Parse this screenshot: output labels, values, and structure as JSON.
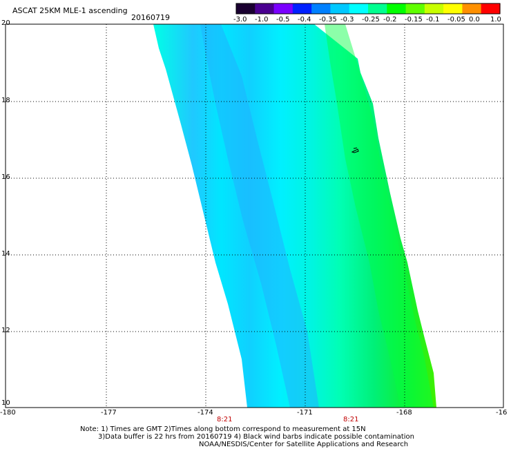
{
  "header": {
    "title": "ASCAT 25KM MLE-1 ascending",
    "date": "20160719"
  },
  "colorbar": {
    "tick_labels": [
      "-3.0",
      "-1.0",
      "-0.5",
      "-0.4",
      "-0.35",
      "-0.3",
      "-0.25",
      "-0.2",
      "-0.15",
      "-0.1",
      "-0.05",
      "0.0",
      "1.0"
    ],
    "colors": [
      "#1a0030",
      "#4a0090",
      "#7a00ff",
      "#0020ff",
      "#0080ff",
      "#00c8ff",
      "#00ffff",
      "#00ff90",
      "#00ff00",
      "#60ff00",
      "#c8ff00",
      "#ffff00",
      "#ff9000",
      "#ff0000"
    ]
  },
  "map": {
    "lon_labels": [
      "-180",
      "-177",
      "-174",
      "-171",
      "-168",
      "-16"
    ],
    "lat_labels": [
      "20",
      "18",
      "16",
      "14",
      "12",
      "10"
    ],
    "time_labels": [
      "8:21",
      "8:21"
    ],
    "barb_marker": "wind-barb-icon"
  },
  "notes": {
    "line1": "Note: 1) Times are GMT 2)Times along bottom correspond to measurement at 15N",
    "line2": "3)Data buffer is 22 hrs from 20160719 4) Black wind barbs indicate possible contamination",
    "line3": "NOAA/NESDIS/Center for Satellite Applications and Research"
  }
}
